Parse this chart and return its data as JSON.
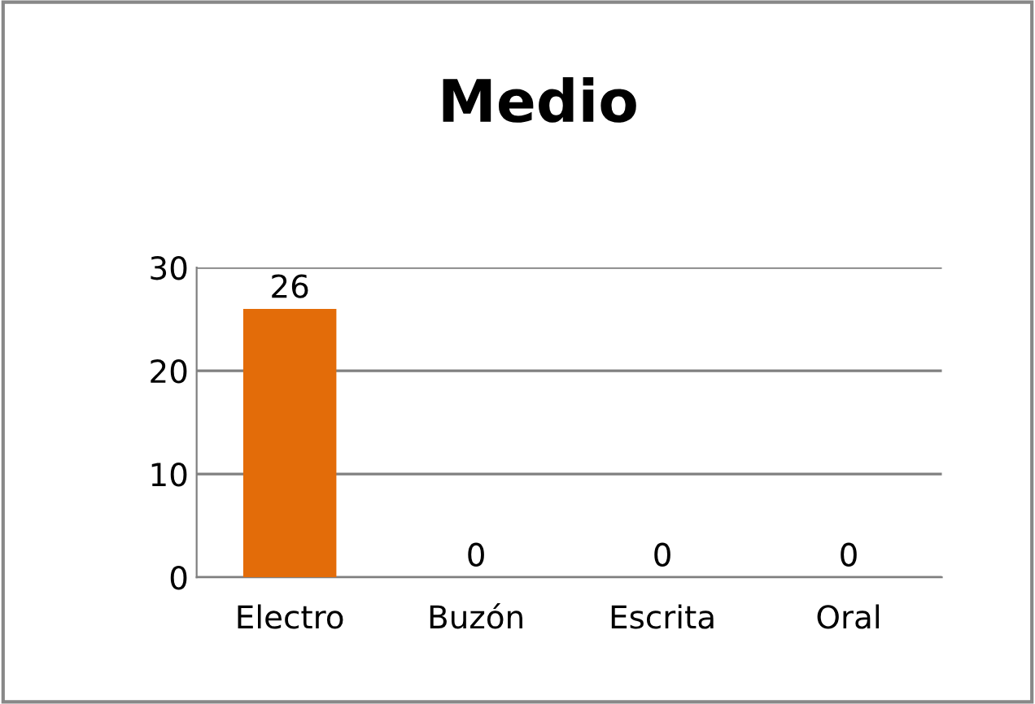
{
  "chart_data": {
    "type": "bar",
    "title": "Medio",
    "categories": [
      "Electro",
      "Buzón",
      "Escrita",
      "Oral"
    ],
    "values": [
      26,
      0,
      0,
      0
    ],
    "color": "#e36c09",
    "ylim": [
      0,
      30
    ],
    "yticks": [
      0,
      10,
      20,
      30
    ],
    "grid": "y",
    "data_labels": true
  }
}
